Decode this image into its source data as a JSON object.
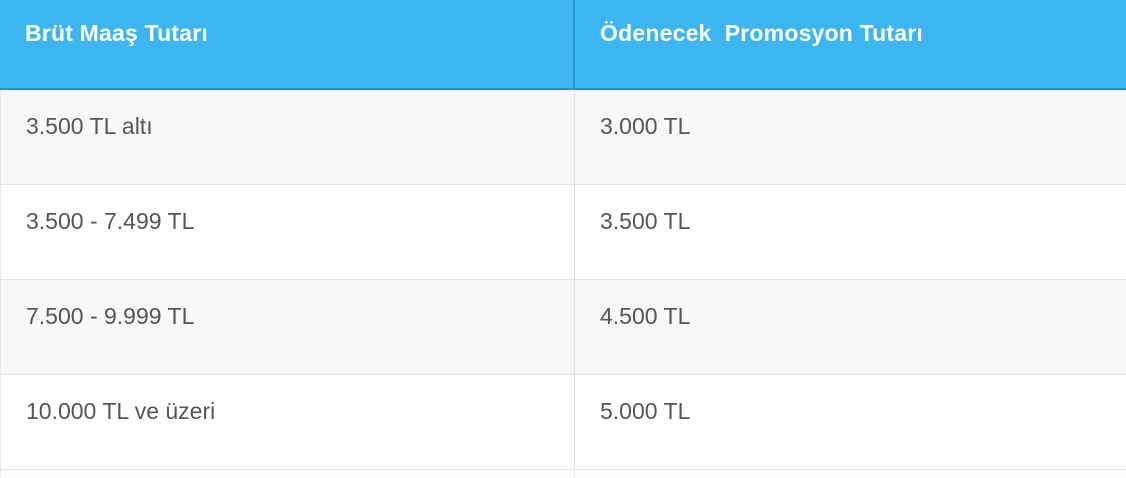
{
  "table": {
    "columns": [
      {
        "label": "Brüt Maaş Tutarı"
      },
      {
        "label": "Ödenecek  Promosyon Tutarı"
      }
    ],
    "rows": [
      {
        "brut_maas": "3.500 TL altı",
        "promosyon": "3.000 TL"
      },
      {
        "brut_maas": "3.500 - 7.499 TL",
        "promosyon": "3.500 TL"
      },
      {
        "brut_maas": "7.500 - 9.999 TL",
        "promosyon": "4.500 TL"
      },
      {
        "brut_maas": "10.000 TL ve üzeri",
        "promosyon": "5.000 TL"
      }
    ]
  },
  "colors": {
    "header_background": "#3db5f0",
    "header_border": "#2a94c7",
    "header_text": "#ffffff",
    "row_alt_background": "#f8f8f8",
    "row_background": "#ffffff",
    "row_border": "#e4e4e4",
    "body_text": "#54565a"
  },
  "chart_data": {
    "type": "table",
    "title": "",
    "columns": [
      "Brüt Maaş Tutarı",
      "Ödenecek  Promosyon Tutarı"
    ],
    "rows": [
      [
        "3.500 TL altı",
        "3.000 TL"
      ],
      [
        "3.500 - 7.499 TL",
        "3.500 TL"
      ],
      [
        "7.500 - 9.999 TL",
        "4.500 TL"
      ],
      [
        "10.000 TL ve üzeri",
        "5.000 TL"
      ]
    ]
  }
}
